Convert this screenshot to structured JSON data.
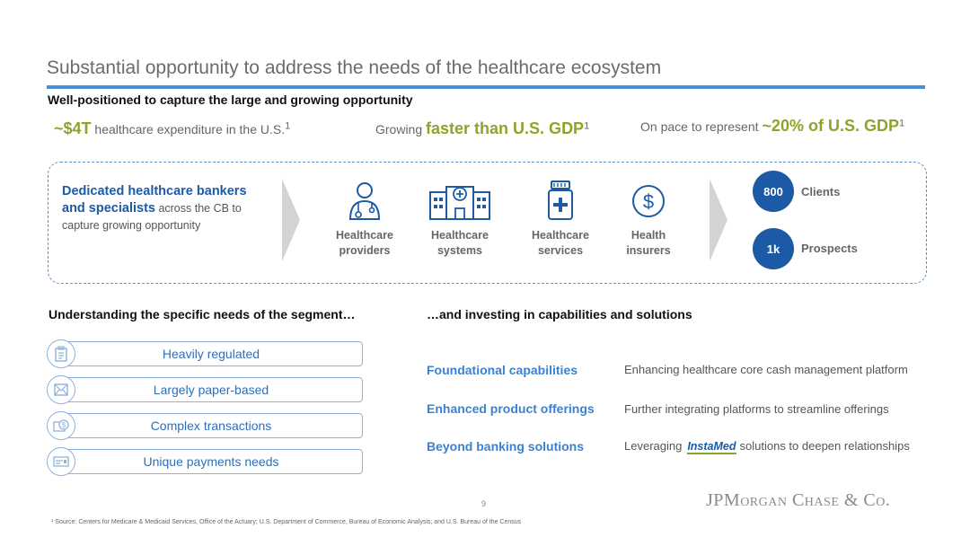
{
  "header": {
    "title": "Substantial opportunity to address the needs of the healthcare ecosystem",
    "subtitle": "Well-positioned to capture the large and growing opportunity"
  },
  "stats": [
    {
      "prefix": "",
      "highlight": "~$4T",
      "suffix": " healthcare expenditure in the U.S.",
      "sup": "1"
    },
    {
      "prefix": "Growing ",
      "highlight": "faster than U.S. GDP",
      "suffix": "",
      "sup": "1"
    },
    {
      "prefix": "On pace to represent ",
      "highlight": "~20% of U.S. GDP",
      "suffix": "",
      "sup": "1"
    }
  ],
  "bankers": {
    "bold": "Dedicated healthcare bankers and specialists",
    "rest": " across the CB to capture growing opportunity"
  },
  "segments": [
    {
      "icon": "doctor-icon",
      "line1": "Healthcare",
      "line2": "providers"
    },
    {
      "icon": "hospital-icon",
      "line1": "Healthcare",
      "line2": "systems"
    },
    {
      "icon": "medicine-bottle-icon",
      "line1": "Healthcare",
      "line2": "services"
    },
    {
      "icon": "dollar-circle-icon",
      "line1": "Health",
      "line2": "insurers"
    }
  ],
  "metrics": [
    {
      "value": "800",
      "label": "Clients"
    },
    {
      "value": "1k",
      "label": "Prospects"
    }
  ],
  "needs_section": {
    "heading": "Understanding the specific needs of the segment…",
    "items": [
      {
        "icon": "clipboard-icon",
        "label": "Heavily regulated"
      },
      {
        "icon": "envelope-icon",
        "label": "Largely paper-based"
      },
      {
        "icon": "money-icon",
        "label": "Complex transactions"
      },
      {
        "icon": "payment-card-icon",
        "label": "Unique payments needs"
      }
    ]
  },
  "capabilities_section": {
    "heading": "…and investing in capabilities and solutions",
    "items": [
      {
        "label": "Foundational capabilities",
        "desc": "Enhancing healthcare core cash management platform"
      },
      {
        "label": "Enhanced product offerings",
        "desc": "Further integrating platforms to streamline offerings"
      },
      {
        "label": "Beyond banking solutions",
        "desc_prefix": "Leveraging",
        "brand": "InstaMed",
        "desc_suffix": "solutions to deepen relationships"
      }
    ]
  },
  "footer": {
    "page_number": "9",
    "logo": "JPMorgan Chase & Co.",
    "footnote": "¹ Source: Centers for Medicare & Medicaid Services, Office of the Actuary; U.S. Department of Commerce, Bureau of Economic Analysis; and U.S. Bureau of the Census"
  },
  "colors": {
    "accent_blue": "#1c5aa6",
    "light_blue": "#3a82cf",
    "accent_green": "#8ea428",
    "rule_blue": "#4a8ed6"
  }
}
